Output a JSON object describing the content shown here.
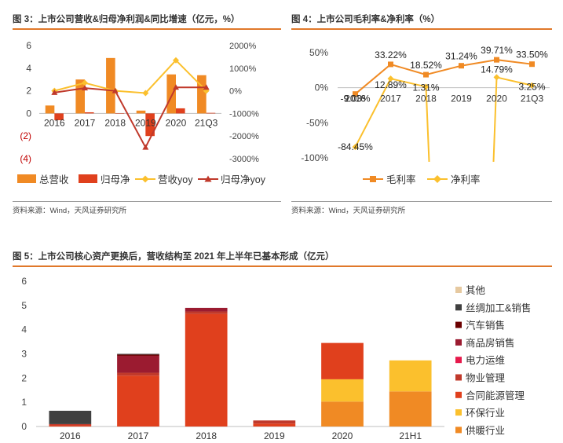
{
  "figures": {
    "fig3": {
      "title": "图 3：上市公司营收&归母净利润&同比增速（亿元，%）",
      "source": "资料来源：Wind，天风证券研究所"
    },
    "fig4": {
      "title": "图 4：上市公司毛利率&净利率（%）",
      "source": "资料来源：Wind，天风证券研究所"
    },
    "fig5": {
      "title": "图 5：上市公司核心资产更换后，营收结构至 2021 年上半年已基本形成（亿元）"
    }
  },
  "colors": {
    "orange": "#f08a24",
    "red": "#e0401d",
    "yellow": "#fbc02d",
    "darkred": "#c0392b",
    "rule": "#e0782a",
    "negative_tick": "#c00000"
  },
  "chart_data": [
    {
      "id": "fig3",
      "type": "bar",
      "categories": [
        "2016",
        "2017",
        "2018",
        "2019",
        "2020",
        "21Q3"
      ],
      "series": [
        {
          "name": "总营收",
          "kind": "bar",
          "axis": "left",
          "color": "#f08a24",
          "values": [
            0.7,
            3.0,
            4.9,
            0.25,
            3.45,
            3.38
          ]
        },
        {
          "name": "归母净",
          "kind": "bar",
          "axis": "left",
          "color": "#e0401d",
          "values": [
            -0.6,
            0.1,
            0.0,
            -2.0,
            0.45,
            0.05
          ]
        },
        {
          "name": "营收yoy",
          "kind": "line",
          "axis": "right",
          "color": "#fbc02d",
          "values": [
            0,
            350,
            0,
            -100,
            1350,
            0
          ]
        },
        {
          "name": "归母净yoy",
          "kind": "line",
          "axis": "right",
          "color": "#c0392b",
          "values": [
            -80,
            120,
            0,
            -2500,
            150,
            150
          ]
        }
      ],
      "left_ticks": [
        "6",
        "4",
        "2",
        "0",
        "(2)",
        "(4)"
      ],
      "right_ticks": [
        "2000%",
        "1000%",
        "0%",
        "-1000%",
        "-2000%",
        "-3000%"
      ],
      "ylim_left": [
        -4,
        6
      ],
      "ylim_right": [
        -3000,
        2000
      ],
      "legend_position": "bottom"
    },
    {
      "id": "fig4",
      "type": "line",
      "categories": [
        "2016",
        "2017",
        "2018",
        "2019",
        "2020",
        "21Q3"
      ],
      "series": [
        {
          "name": "毛利率",
          "color": "#f08a24",
          "marker": "square",
          "values": [
            -9.03,
            33.22,
            18.52,
            31.24,
            39.71,
            33.5
          ],
          "labels": [
            "-9.03%",
            "33.22%",
            "18.52%",
            "31.24%",
            "39.71%",
            "33.50%"
          ]
        },
        {
          "name": "净利率",
          "color": "#fbc02d",
          "marker": "diamond",
          "values": [
            -84.45,
            12.89,
            1.31,
            null,
            14.79,
            3.25
          ],
          "labels": [
            "-84.45%",
            "12.89%",
            "1.31%",
            "",
            "14.79%",
            "3.25%"
          ]
        }
      ],
      "y_ticks": [
        "50%",
        "0%",
        "-50%",
        "-100%"
      ],
      "ylim": [
        -100,
        60
      ],
      "legend_position": "bottom"
    },
    {
      "id": "fig5",
      "type": "bar",
      "stacked": true,
      "categories": [
        "2016",
        "2017",
        "2018",
        "2019",
        "2020",
        "21H1"
      ],
      "series": [
        {
          "name": "供暖行业",
          "color": "#f08a24",
          "values": [
            0,
            0,
            0,
            0,
            1.03,
            1.45
          ]
        },
        {
          "name": "环保行业",
          "color": "#fbc02d",
          "values": [
            0,
            0,
            0,
            0,
            0.92,
            1.28
          ]
        },
        {
          "name": "合同能源管理",
          "color": "#e0401d",
          "values": [
            0.05,
            2.1,
            4.65,
            0.12,
            1.5,
            0
          ]
        },
        {
          "name": "物业管理",
          "color": "#c0392b",
          "values": [
            0.05,
            0.12,
            0.1,
            0.13,
            0,
            0
          ]
        },
        {
          "name": "电力运维",
          "color": "#e6194b",
          "values": [
            0,
            0,
            0,
            0,
            0,
            0
          ]
        },
        {
          "name": "商品房销售",
          "color": "#9b1b30",
          "values": [
            0,
            0.7,
            0.15,
            0,
            0,
            0
          ]
        },
        {
          "name": "汽车销售",
          "color": "#6b0000",
          "values": [
            0,
            0.05,
            0,
            0,
            0,
            0
          ]
        },
        {
          "name": "丝绸加工&销售",
          "color": "#404040",
          "values": [
            0.55,
            0.03,
            0,
            0,
            0,
            0
          ]
        },
        {
          "name": "其他",
          "color": "#e6c9a0",
          "values": [
            0,
            0,
            0,
            0,
            0,
            0
          ]
        }
      ],
      "y_ticks": [
        "6",
        "5",
        "4",
        "3",
        "2",
        "1",
        "0"
      ],
      "ylim": [
        0,
        6
      ],
      "legend_position": "right"
    }
  ]
}
